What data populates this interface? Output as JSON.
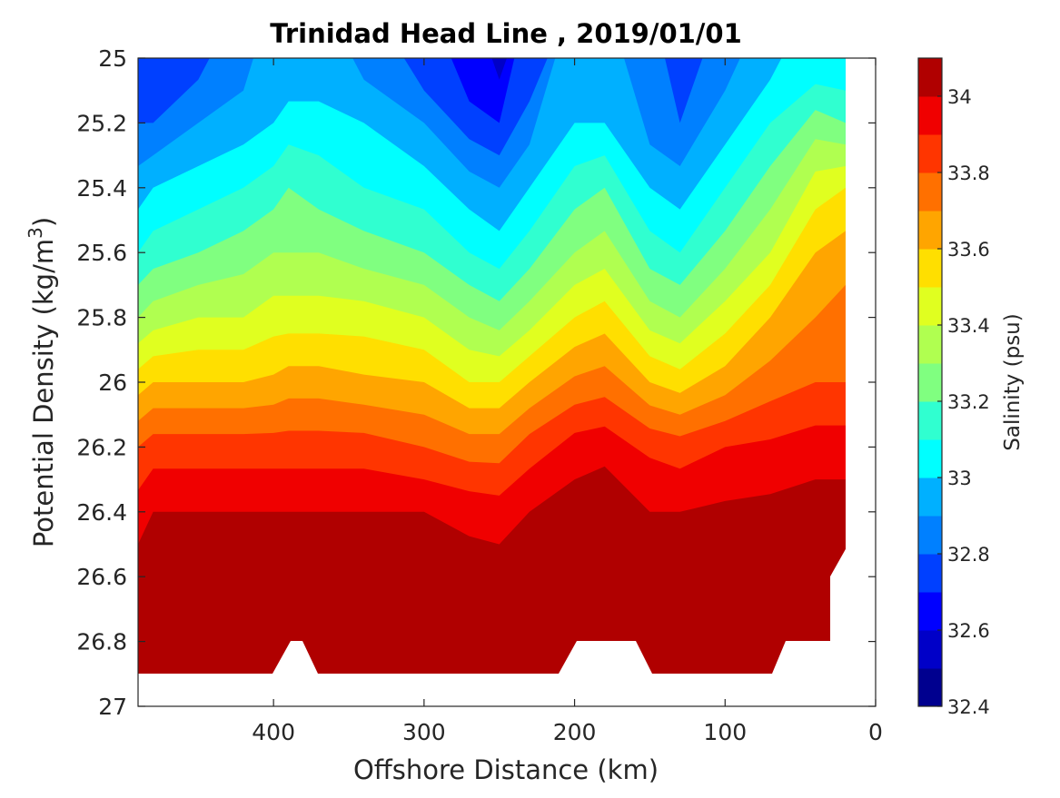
{
  "chart_data": {
    "type": "heatmap",
    "plot_style": "filled-contour",
    "title": "Trinidad Head Line , 2019/01/01",
    "xlabel": "Offshore Distance (km)",
    "ylabel_main": "Potential Density (kg/m",
    "ylabel_sup": "3",
    "ylabel_close": ")",
    "colorbar_label": "Salinity (psu)",
    "x_axis": {
      "range": [
        490,
        0
      ],
      "direction": "reversed",
      "ticks": [
        400,
        300,
        200,
        100,
        0
      ],
      "tick_labels": [
        "400",
        "300",
        "200",
        "100",
        "0"
      ]
    },
    "y_axis": {
      "range": [
        25,
        27
      ],
      "direction": "reversed",
      "ticks": [
        25,
        25.2,
        25.4,
        25.6,
        25.8,
        26,
        26.2,
        26.4,
        26.6,
        26.8,
        27
      ],
      "tick_labels": [
        "25",
        "25.2",
        "25.4",
        "25.6",
        "25.8",
        "26",
        "26.2",
        "26.4",
        "26.6",
        "26.8",
        "27"
      ]
    },
    "colorbar": {
      "range": [
        32.4,
        34.1
      ],
      "levels": [
        32.4,
        32.5,
        32.6,
        32.7,
        32.8,
        32.9,
        33.0,
        33.1,
        33.2,
        33.3,
        33.4,
        33.5,
        33.6,
        33.7,
        33.8,
        33.9,
        34.0,
        34.1
      ],
      "ticks": [
        32.4,
        32.6,
        32.8,
        33,
        33.2,
        33.4,
        33.6,
        33.8,
        34
      ],
      "tick_labels": [
        "32.4",
        "32.6",
        "32.8",
        "33",
        "33.2",
        "33.4",
        "33.6",
        "33.8",
        "34"
      ],
      "colors": [
        "#00008f",
        "#0000c8",
        "#0000ff",
        "#0040ff",
        "#0080ff",
        "#00b0ff",
        "#00ffff",
        "#30ffd0",
        "#80ff80",
        "#b0ff50",
        "#e0ff20",
        "#ffdf00",
        "#ffa500",
        "#ff7000",
        "#ff3500",
        "#f00000",
        "#b00000"
      ]
    },
    "series": [
      {
        "name": "",
        "x": [
          490,
          480,
          450,
          420,
          400,
          390,
          370,
          340,
          300,
          270,
          250,
          230,
          200,
          180,
          150,
          130,
          100,
          70,
          40,
          20
        ],
        "bottom_density": [
          26.9,
          26.9,
          26.9,
          26.9,
          26.9,
          26.8,
          26.9,
          26.9,
          26.9,
          26.9,
          26.9,
          26.9,
          26.8,
          26.8,
          26.9,
          26.9,
          26.9,
          26.8,
          26.8,
          26.5
        ],
        "salinity_at_25.0": [
          32.7,
          32.7,
          32.75,
          32.85,
          32.9,
          32.9,
          32.9,
          32.85,
          32.7,
          32.6,
          32.55,
          32.7,
          32.9,
          32.9,
          32.8,
          32.7,
          32.85,
          32.95,
          33.0,
          33.0
        ],
        "salinity_at_25.2": [
          32.8,
          32.8,
          32.9,
          32.95,
          33.0,
          33.05,
          33.05,
          33.0,
          32.9,
          32.75,
          32.7,
          32.85,
          33.0,
          33.0,
          32.85,
          32.8,
          32.95,
          33.1,
          33.25,
          33.2
        ],
        "salinity_at_25.4": [
          32.95,
          33.0,
          33.05,
          33.1,
          33.15,
          33.2,
          33.15,
          33.1,
          33.05,
          32.95,
          32.9,
          33.0,
          33.15,
          33.2,
          33.0,
          32.95,
          33.1,
          33.25,
          33.45,
          33.5
        ],
        "salinity_at_25.6": [
          33.1,
          33.15,
          33.2,
          33.25,
          33.3,
          33.3,
          33.3,
          33.25,
          33.2,
          33.1,
          33.05,
          33.15,
          33.3,
          33.35,
          33.15,
          33.1,
          33.25,
          33.4,
          33.6,
          33.65
        ],
        "salinity_at_25.8": [
          33.3,
          33.35,
          33.4,
          33.4,
          33.45,
          33.45,
          33.45,
          33.45,
          33.4,
          33.3,
          33.25,
          33.35,
          33.5,
          33.55,
          33.35,
          33.3,
          33.45,
          33.6,
          33.7,
          33.75
        ],
        "salinity_at_26.0": [
          33.55,
          33.6,
          33.6,
          33.6,
          33.62,
          33.65,
          33.65,
          33.62,
          33.6,
          33.5,
          33.5,
          33.6,
          33.72,
          33.75,
          33.6,
          33.55,
          33.65,
          33.75,
          33.8,
          33.8
        ],
        "salinity_at_26.2": [
          33.8,
          33.85,
          33.85,
          33.85,
          33.85,
          33.85,
          33.85,
          33.85,
          33.8,
          33.75,
          33.75,
          33.85,
          33.95,
          33.97,
          33.88,
          33.85,
          33.9,
          33.92,
          33.95,
          33.95
        ],
        "salinity_at_26.4": [
          33.95,
          34.0,
          34.0,
          34.0,
          34.0,
          34.0,
          34.0,
          34.0,
          34.0,
          33.97,
          33.95,
          34.0,
          34.05,
          34.07,
          34.0,
          34.0,
          34.02,
          34.03,
          34.05,
          34.05
        ],
        "salinity_at_26.6": [
          34.05,
          34.05,
          34.05,
          34.05,
          34.05,
          34.05,
          34.05,
          34.05,
          34.05,
          34.05,
          34.05,
          34.08,
          34.15,
          34.15,
          34.12,
          34.1,
          34.12,
          34.15,
          34.15,
          34.15
        ],
        "salinity_at_26.8": [
          34.12,
          34.12,
          34.12,
          34.12,
          34.12,
          34.12,
          34.12,
          34.12,
          34.12,
          34.12,
          34.12,
          34.12,
          34.15,
          34.15,
          34.15,
          34.15,
          34.15,
          34.15,
          34.15,
          34.15
        ]
      }
    ],
    "grid": false,
    "legend": "colorbar-right"
  }
}
